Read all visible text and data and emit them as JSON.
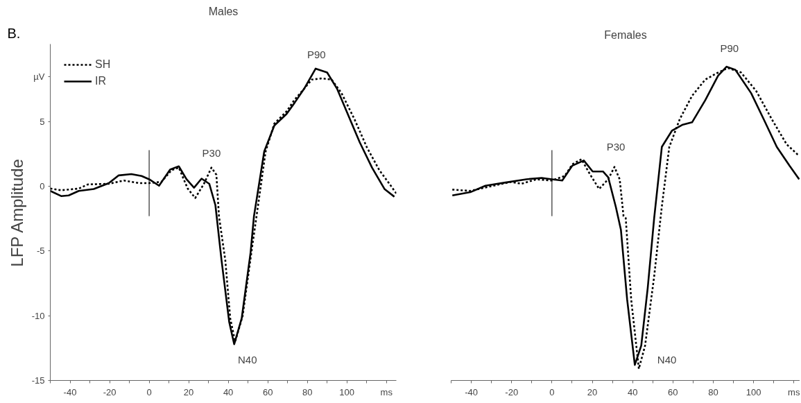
{
  "chart_data": [
    {
      "type": "line",
      "title": "Males",
      "ylabel": "LFP Amplitude",
      "xlim": [
        -50,
        125
      ],
      "ylim": [
        -15,
        11
      ],
      "xticks": [
        {
          "value": -50,
          "label": null
        },
        -40,
        {
          "value": -30,
          "label": null
        },
        -20,
        {
          "value": -10,
          "label": null
        },
        0,
        {
          "value": 10,
          "label": null
        },
        20,
        {
          "value": 30,
          "label": null
        },
        40,
        {
          "value": 50,
          "label": null
        },
        60,
        {
          "value": 70,
          "label": null
        },
        80,
        {
          "value": 90,
          "label": null
        },
        100,
        {
          "value": 110,
          "label": null
        },
        {
          "value": 120,
          "label": "ms"
        }
      ],
      "yticks": [
        -15,
        -10,
        -5,
        0,
        5,
        {
          "value": 8.5,
          "label": "µV"
        }
      ],
      "legend": "top left",
      "annotations": [
        "B.",
        "P30",
        "N40",
        "P90"
      ],
      "series": [
        {
          "name": "SH",
          "color": "#000000",
          "line_style": "dotted",
          "x": [
            -50,
            -44.5,
            -35.6,
            -31,
            -20.4,
            -12.8,
            -5.2,
            0,
            6.2,
            11.3,
            15,
            19.5,
            23.3,
            27.7,
            31.5,
            34,
            35.3,
            38.5,
            41,
            43.5,
            47.3,
            51.7,
            54.3,
            58.9,
            63.3,
            69.5,
            73.3,
            78.4,
            82.2,
            87.3,
            92.3,
            97.3,
            103.8,
            110,
            116.4,
            121.5,
            125
          ],
          "values": [
            -0.17,
            -0.3,
            -0.17,
            0.15,
            0.2,
            0.45,
            0.25,
            0.25,
            0.35,
            1.25,
            1.45,
            -0.17,
            -0.9,
            0.2,
            1.45,
            0.9,
            -2.3,
            -5.7,
            -10.2,
            -12,
            -10,
            -5.1,
            -2.3,
            2.7,
            4.85,
            5.8,
            6.65,
            7.55,
            8.25,
            8.35,
            8.25,
            7.2,
            5.2,
            3.05,
            1.25,
            0.2,
            -0.55
          ]
        },
        {
          "name": "IR",
          "color": "#000000",
          "line_style": "solid",
          "x": [
            -50,
            -44.5,
            -40.7,
            -35.6,
            -28,
            -20.4,
            -15.4,
            -9,
            -3.8,
            0,
            5,
            10.6,
            15,
            18.9,
            22.7,
            26.5,
            30.4,
            33.5,
            36.6,
            40.5,
            43,
            46.8,
            51.3,
            53,
            58.2,
            63.3,
            69.5,
            73.5,
            78.4,
            84.2,
            90,
            95,
            100,
            106.5,
            112.7,
            119,
            124
          ],
          "values": [
            -0.35,
            -0.75,
            -0.7,
            -0.35,
            -0.2,
            0.25,
            0.85,
            0.95,
            0.8,
            0.55,
            0.05,
            1.3,
            1.55,
            0.55,
            -0.1,
            0.6,
            0.2,
            -1.45,
            -5.7,
            -10.5,
            -12.2,
            -10.2,
            -5.1,
            -2.3,
            2.7,
            4.7,
            5.6,
            6.45,
            7.55,
            9.1,
            8.8,
            7.55,
            5.75,
            3.4,
            1.45,
            -0.2,
            -0.8
          ]
        },
        {
          "color": "#000000",
          "line_style": "solid",
          "x": [
            0,
            0
          ],
          "values": [
            2.8,
            -2.3
          ]
        }
      ]
    },
    {
      "type": "line",
      "title": "Females",
      "xlim": [
        -50,
        123
      ],
      "yticks": [
        -15,
        -10,
        -5,
        0,
        5
      ],
      "tick_labels": "x",
      "xticks": [
        {
          "value": -50,
          "label": null
        },
        -40,
        {
          "value": -30,
          "label": null
        },
        -20,
        {
          "value": -10,
          "label": null
        },
        0,
        {
          "value": 10,
          "label": null
        },
        20,
        {
          "value": 30,
          "label": null
        },
        40,
        {
          "value": 50,
          "label": null
        },
        60,
        {
          "value": 70,
          "label": null
        },
        80,
        {
          "value": 90,
          "label": null
        },
        100,
        {
          "value": 110,
          "label": null
        },
        {
          "value": 120,
          "label": "ms"
        }
      ],
      "annotations": [
        "P30",
        "N40",
        "P90"
      ],
      "series": [
        {
          "color": "#000000",
          "line_style": "dotted",
          "x": [
            -49.4,
            -40.5,
            -30.5,
            -20.3,
            -15.2,
            -7.6,
            0,
            6.3,
            10.1,
            14.6,
            19,
            23.4,
            27.9,
            31,
            33.6,
            35.5,
            36.6,
            39.3,
            43.1,
            46.2,
            50.7,
            54.5,
            58.2,
            63.4,
            69.5,
            76,
            82.4,
            87.3,
            93.8,
            101.4,
            109,
            116.4,
            122.6
          ],
          "values": [
            -0.25,
            -0.35,
            0,
            0.35,
            0.2,
            0.55,
            0.45,
            0.8,
            1.7,
            2.1,
            0.9,
            -0.2,
            0.55,
            1.5,
            0.55,
            -2.3,
            -2.45,
            -8.75,
            -14.1,
            -12.3,
            -6.95,
            -1.55,
            3.05,
            5.2,
            7,
            8.25,
            8.8,
            9.15,
            8.8,
            7.35,
            5.2,
            3.25,
            2.35
          ]
        },
        {
          "color": "#000000",
          "line_style": "solid",
          "x": [
            -49.4,
            -40.5,
            -33,
            -23,
            -12.7,
            -5.1,
            0,
            5.1,
            10.1,
            15.8,
            20.2,
            25.3,
            27.9,
            31.7,
            34.2,
            37.3,
            41.1,
            44.3,
            47.5,
            50.7,
            54.5,
            59.5,
            64.6,
            69.5,
            76,
            82.4,
            86.6,
            91,
            98.8,
            105,
            111.5,
            117.8,
            122.6
          ],
          "values": [
            -0.7,
            -0.45,
            0.05,
            0.3,
            0.55,
            0.65,
            0.55,
            0.45,
            1.6,
            2,
            1.15,
            1.15,
            0.7,
            -1.6,
            -3.35,
            -8.75,
            -13.8,
            -12.3,
            -7.85,
            -2.45,
            3.05,
            4.3,
            4.75,
            4.95,
            6.65,
            8.55,
            9.25,
            9,
            7.2,
            5.2,
            3.05,
            1.6,
            0.55
          ]
        },
        {
          "color": "#000000",
          "line_style": "solid",
          "x": [
            0,
            0
          ],
          "values": [
            2.8,
            -2.3
          ]
        }
      ]
    }
  ]
}
